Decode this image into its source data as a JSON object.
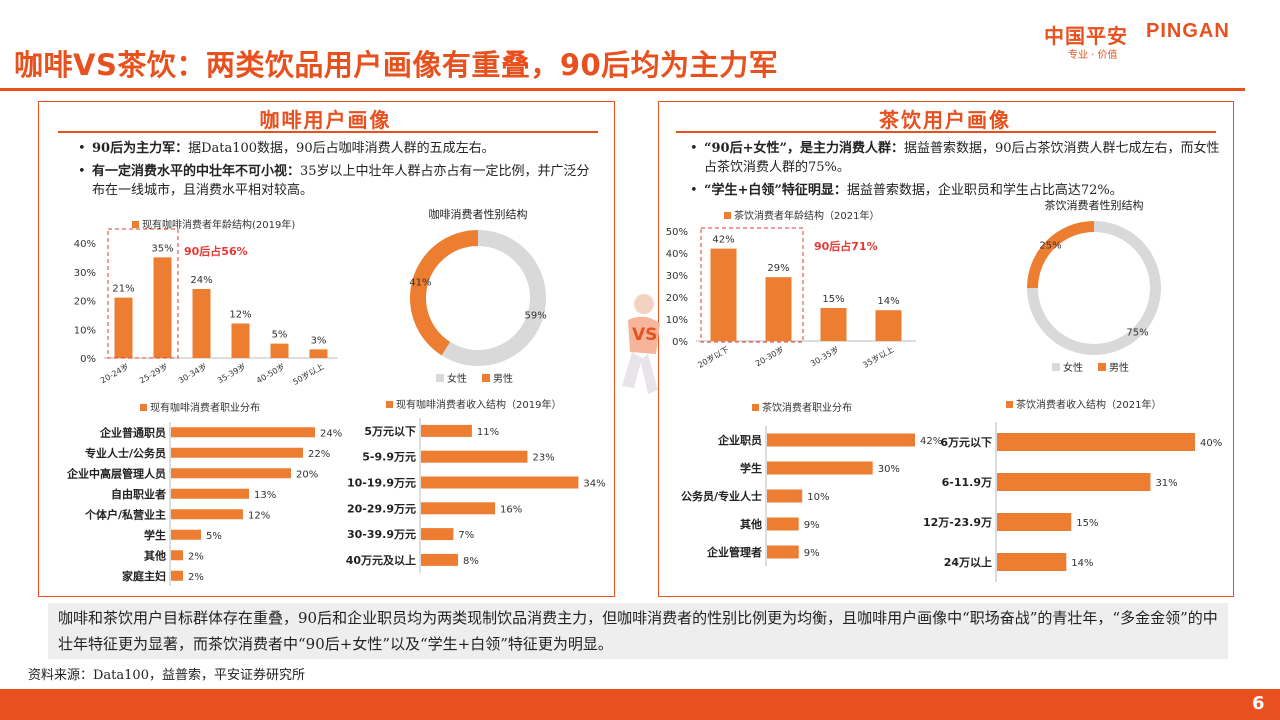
{
  "header": {
    "title": "咖啡VS茶饮：两类饮品用户画像有重叠，90后均为主力军",
    "logo_cn": "中国平安",
    "logo_en": "PINGAN",
    "logo_sub": "专业 · 价值"
  },
  "coffee": {
    "title": "咖啡用户画像",
    "bullets": [
      {
        "bold": "90后为主力军：",
        "text": "据Data100数据，90后占咖啡消费人群的五成左右。"
      },
      {
        "bold": "有一定消费水平的中壮年不可小视：",
        "text": "35岁以上中壮年人群占亦占有一定比例，并广泛分布在一线城市，且消费水平相对较高。"
      }
    ]
  },
  "tea": {
    "title": "茶饮用户画像",
    "bullets": [
      {
        "bold": "“90后+女性”，是主力消费人群：",
        "text": "据益普索数据，90后占茶饮消费人群七成左右，而女性占茶饮消费人群的75%。"
      },
      {
        "bold": "“学生+白领”特征明显：",
        "text": "据益普索数据，企业职员和学生占比高达72%。"
      }
    ]
  },
  "vs_label": "VS",
  "conclusion": "咖啡和茶饮用户目标群体存在重叠，90后和企业职员均为两类现制饮品消费主力，但咖啡消费者的性别比例更为均衡，且咖啡用户画像中“职场奋战”的青壮年，“多金金领”的中壮年特征更为显著，而茶饮消费者中“90后+女性”以及“学生+白领”特征更为明显。",
  "source": "资料来源：Data100，益普索，平安证券研究所",
  "page_number": "6",
  "colors": {
    "accent": "#e8501e",
    "bar": "#ed7d31",
    "grey": "#d9d9d9"
  },
  "chart_data": [
    {
      "id": "coffee-age",
      "type": "bar",
      "title": "现有咖啡消费者年龄结构(2019年)",
      "categories": [
        "20-24岁",
        "25-29岁",
        "30-34岁",
        "35-39岁",
        "40-50岁",
        "50岁以上"
      ],
      "values": [
        21,
        35,
        24,
        12,
        5,
        3
      ],
      "labels": [
        "21%",
        "35%",
        "24%",
        "12%",
        "5%",
        "3%"
      ],
      "yticks": [
        "0%",
        "10%",
        "20%",
        "30%",
        "40%"
      ],
      "ylim": [
        0,
        40
      ],
      "annotation": "90后占56%"
    },
    {
      "id": "coffee-gender",
      "type": "pie",
      "title": "咖啡消费者性别结构",
      "slices": [
        {
          "name": "女性",
          "value": 59,
          "label": "59%"
        },
        {
          "name": "男性",
          "value": 41,
          "label": "41%"
        }
      ]
    },
    {
      "id": "coffee-job",
      "type": "bar",
      "orientation": "horizontal",
      "title": "现有咖啡消费者职业分布",
      "categories": [
        "企业普通职员",
        "专业人士/公务员",
        "企业中高层管理人员",
        "自由职业者",
        "个体户/私营业主",
        "学生",
        "其他",
        "家庭主妇"
      ],
      "values": [
        24,
        22,
        20,
        13,
        12,
        5,
        2,
        2
      ],
      "labels": [
        "24%",
        "22%",
        "20%",
        "13%",
        "12%",
        "5%",
        "2%",
        "2%"
      ],
      "xlim": [
        0,
        30
      ]
    },
    {
      "id": "coffee-income",
      "type": "bar",
      "orientation": "horizontal",
      "title": "现有咖啡消费者收入结构（2019年）",
      "categories": [
        "5万元以下",
        "5-9.9万元",
        "10-19.9万元",
        "20-29.9万元",
        "30-39.9万元",
        "40万元及以上"
      ],
      "values": [
        11,
        23,
        34,
        16,
        7,
        8
      ],
      "labels": [
        "11%",
        "23%",
        "34%",
        "16%",
        "7%",
        "8%"
      ],
      "xlim": [
        0,
        35
      ]
    },
    {
      "id": "tea-age",
      "type": "bar",
      "title": "茶饮消费者年龄结构（2021年）",
      "categories": [
        "20岁以下",
        "20-30岁",
        "30-35岁",
        "35岁以上"
      ],
      "values": [
        42,
        29,
        15,
        14
      ],
      "labels": [
        "42%",
        "29%",
        "15%",
        "14%"
      ],
      "yticks": [
        "0%",
        "10%",
        "20%",
        "30%",
        "40%",
        "50%"
      ],
      "ylim": [
        0,
        50
      ],
      "annotation": "90后占71%"
    },
    {
      "id": "tea-gender",
      "type": "pie",
      "title": "茶饮消费者性别结构",
      "slices": [
        {
          "name": "女性",
          "value": 75,
          "label": "75%"
        },
        {
          "name": "男性",
          "value": 25,
          "label": "25%"
        }
      ]
    },
    {
      "id": "tea-job",
      "type": "bar",
      "orientation": "horizontal",
      "title": "茶饮消费者职业分布",
      "categories": [
        "企业职员",
        "学生",
        "公务员/专业人士",
        "其他",
        "企业管理者"
      ],
      "values": [
        42,
        30,
        10,
        9,
        9
      ],
      "labels": [
        "42%",
        "30%",
        "10%",
        "9%",
        "9%"
      ],
      "xlim": [
        0,
        42
      ]
    },
    {
      "id": "tea-income",
      "type": "bar",
      "orientation": "horizontal",
      "title": "茶饮消费者收入结构（2021年）",
      "categories": [
        "6万元以下",
        "6-11.9万",
        "12万-23.9万",
        "24万以上"
      ],
      "values": [
        40,
        31,
        15,
        14
      ],
      "labels": [
        "40%",
        "31%",
        "15%",
        "14%"
      ],
      "xlim": [
        0,
        40
      ]
    }
  ]
}
